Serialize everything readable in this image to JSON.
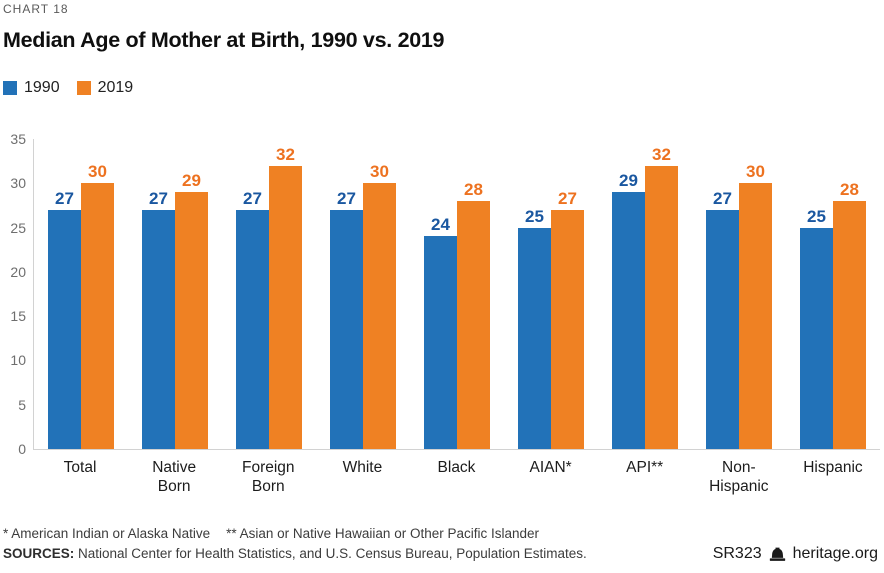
{
  "meta": {
    "chart_label": "CHART 18",
    "title": "Median Age of Mother at Birth, 1990 vs. 2019"
  },
  "legend": [
    {
      "label": "1990",
      "color": "#2272b8"
    },
    {
      "label": "2019",
      "color": "#ef8123"
    }
  ],
  "chart_data": {
    "type": "bar",
    "title": "Median Age of Mother at Birth, 1990 vs. 2019",
    "categories": [
      "Total",
      "Native\nBorn",
      "Foreign\nBorn",
      "White",
      "Black",
      "AIAN*",
      "API**",
      "Non-\nHispanic",
      "Hispanic"
    ],
    "series": [
      {
        "name": "1990",
        "color": "#2272b8",
        "label_color": "#1a57a0",
        "values": [
          27,
          27,
          27,
          27,
          24,
          25,
          29,
          27,
          25
        ]
      },
      {
        "name": "2019",
        "color": "#ef8123",
        "label_color": "#ed7220",
        "values": [
          30,
          29,
          32,
          30,
          28,
          27,
          32,
          30,
          28
        ]
      }
    ],
    "xlabel": "",
    "ylabel": "",
    "ylim": [
      0,
      35
    ],
    "y_ticks": [
      0,
      5,
      10,
      15,
      20,
      25,
      30,
      35
    ],
    "grid": false,
    "legend_position": "top-left",
    "value_labels": true
  },
  "footnotes": {
    "note1": "* American Indian or Alaska Native",
    "note2": "** Asian or Native Hawaiian or Other Pacific Islander",
    "sources_label": "SOURCES:",
    "sources_text": " National Center for Health Statistics, and U.S. Census Bureau, Population Estimates."
  },
  "branding": {
    "report_id": "SR323",
    "site": "heritage.org",
    "icon": "liberty-bell-icon"
  },
  "axis_style": {
    "line_color": "#d2d2d2",
    "tick_text_color": "#6e6e6e"
  }
}
